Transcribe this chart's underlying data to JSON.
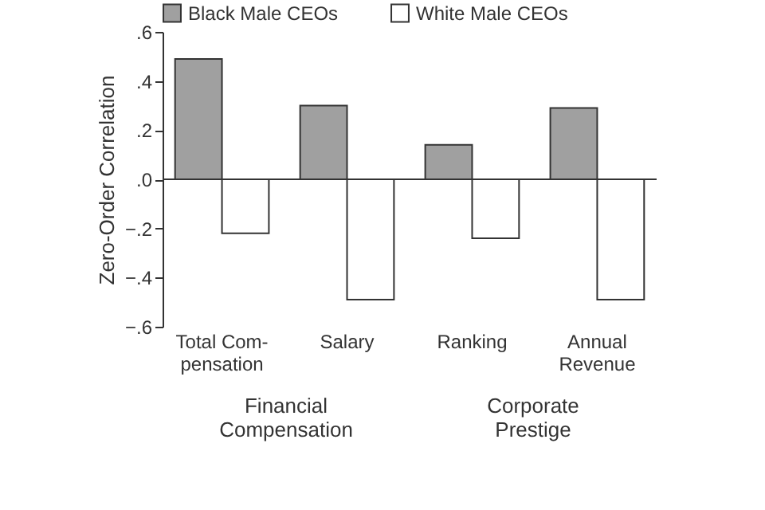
{
  "chart_data": {
    "type": "bar",
    "ylabel": "Zero-Order Correlation",
    "categories": [
      "Total Com-\npensation",
      "Salary",
      "Ranking",
      "Annual\nRevenue"
    ],
    "series": [
      {
        "name": "Black Male CEOs",
        "color": "#a0a0a0",
        "values": [
          0.49,
          0.3,
          0.14,
          0.29
        ]
      },
      {
        "name": "White Male CEOs",
        "color": "#ffffff",
        "values": [
          -0.22,
          -0.49,
          -0.24,
          -0.49
        ]
      }
    ],
    "ylim": [
      -0.6,
      0.6
    ],
    "yticks": [
      {
        "value": -0.6,
        "label": "−.6"
      },
      {
        "value": -0.4,
        "label": "−.4"
      },
      {
        "value": -0.2,
        "label": "−.2"
      },
      {
        "value": 0,
        "label": ".0"
      },
      {
        "value": 0.2,
        "label": ".2"
      },
      {
        "value": 0.4,
        "label": ".4"
      },
      {
        "value": 0.6,
        "label": ".6"
      }
    ],
    "ref_lines": [
      {
        "axis": "y",
        "value": 0
      }
    ],
    "annotations": [
      "Financial Compensation",
      "Corporate Prestige"
    ],
    "legend": "top",
    "grid": false
  }
}
